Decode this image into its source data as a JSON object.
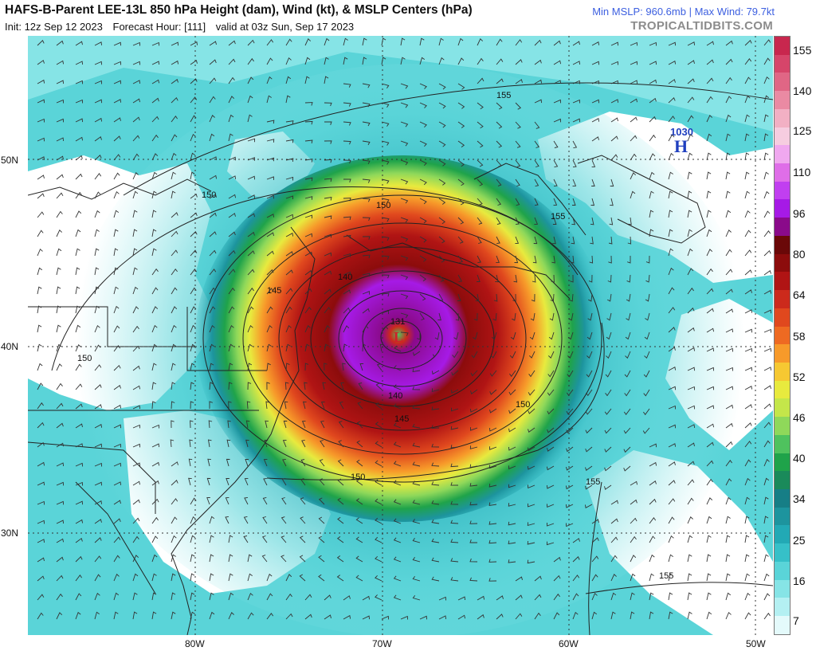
{
  "header": {
    "title": "HAFS-B-Parent LEE-13L 850 hPa Height (dam), Wind (kt), & MSLP Centers (hPa)",
    "init": "Init: 12z Sep 12 2023",
    "forecast_hour": "Forecast Hour: [111]",
    "valid": "valid at 03z Sun, Sep 17 2023",
    "stats": "Min MSLP: 960.6mb | Max Wind: 79.7kt",
    "site": "TROPICALTIDBITS.COM"
  },
  "axes": {
    "lat_labels": [
      "50N",
      "40N",
      "30N"
    ],
    "lon_labels": [
      "80W",
      "70W",
      "60W",
      "50W"
    ]
  },
  "colorbar": {
    "labels": [
      "155",
      "140",
      "125",
      "110",
      "96",
      "80",
      "64",
      "58",
      "52",
      "46",
      "40",
      "34",
      "25",
      "16",
      "7"
    ],
    "colors": [
      "#c8274e",
      "#d6456a",
      "#e06685",
      "#ea8aa3",
      "#f2b0c4",
      "#f6cde0",
      "#f0a8ef",
      "#df6ee8",
      "#c13ff0",
      "#a61ae6",
      "#8a0a8a",
      "#6a0808",
      "#8c0c0c",
      "#b01414",
      "#cc2a1c",
      "#e0481e",
      "#ee6a22",
      "#f79a2a",
      "#f6c832",
      "#e8ea3e",
      "#c4e64a",
      "#8fd85a",
      "#4fc25e",
      "#1fa34a",
      "#1a8a5a",
      "#167e86",
      "#1d949e",
      "#22a9b5",
      "#36c0c8",
      "#5ad4d8",
      "#86e4e6",
      "#b4f0f2",
      "#e4fafb"
    ]
  },
  "map": {
    "contour_labels": [
      "155",
      "150",
      "155",
      "150",
      "145",
      "140",
      "150",
      "145",
      "150",
      "155",
      "155",
      "140",
      "131",
      "150"
    ],
    "high_center": {
      "pressure": "1030",
      "letter": "H"
    },
    "low_center": {
      "letter": "L"
    }
  }
}
